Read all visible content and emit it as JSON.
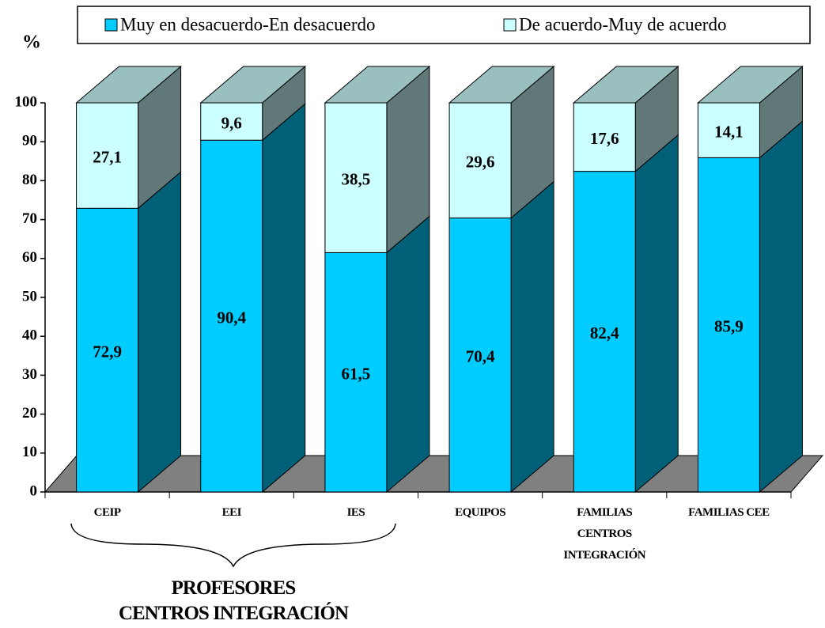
{
  "chart_data": {
    "type": "bar3d_stacked",
    "ylabel": "%",
    "categories": [
      "CEIP",
      "EEI",
      "IES",
      "EQUIPOS",
      "FAMILIAS\nCENTROS\nINTEGRACIÓN",
      "FAMILIAS CEE"
    ],
    "series": [
      {
        "name": "Muy en desacuerdo-En desacuerdo",
        "color": "#00ccff",
        "values": [
          72.9,
          90.4,
          61.5,
          70.4,
          82.4,
          85.9
        ],
        "value_labels": [
          "72,9",
          "90,4",
          "61,5",
          "70,4",
          "82,4",
          "85,9"
        ]
      },
      {
        "name": "De acuerdo-Muy de acuerdo",
        "color": "#ccffff",
        "values": [
          27.1,
          9.6,
          38.5,
          29.6,
          17.6,
          14.1
        ],
        "value_labels": [
          "27,1",
          "9,6",
          "38,5",
          "29,6",
          "17,6",
          "14,1"
        ]
      }
    ],
    "ylim": [
      0,
      100
    ],
    "yticks": [
      0,
      10,
      20,
      30,
      40,
      50,
      60,
      70,
      80,
      90,
      100
    ],
    "legend": "top",
    "annotation": "PROFESORES\nCENTROS INTEGRACIÓN"
  }
}
